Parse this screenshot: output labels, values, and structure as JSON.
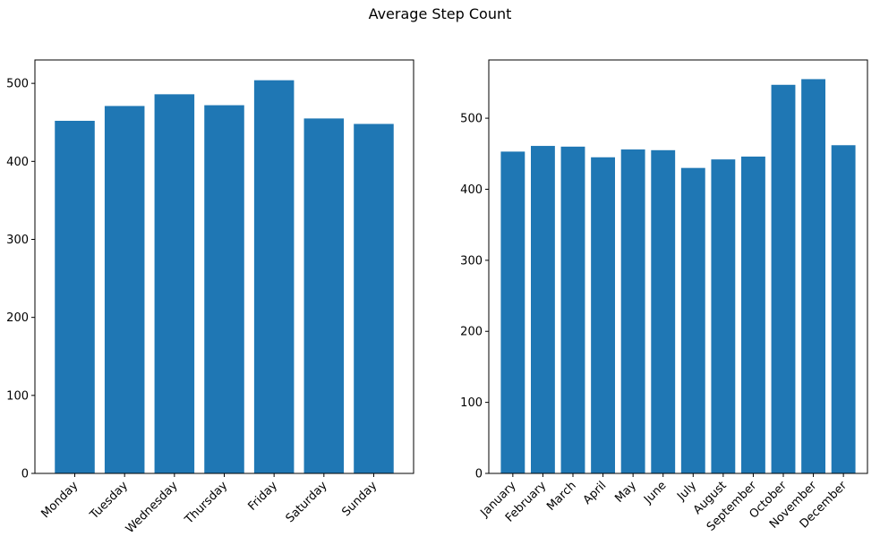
{
  "figure": {
    "title": "Average Step Count"
  },
  "chart_data": [
    {
      "type": "bar",
      "title": "",
      "xlabel": "",
      "ylabel": "",
      "categories": [
        "Monday",
        "Tuesday",
        "Wednesday",
        "Thursday",
        "Friday",
        "Saturday",
        "Sunday"
      ],
      "values": [
        452,
        471,
        486,
        472,
        504,
        455,
        448
      ],
      "ylim": [
        0,
        530
      ],
      "yticks": [
        0,
        100,
        200,
        300,
        400,
        500
      ],
      "bar_color": "#1f77b4",
      "grid": false
    },
    {
      "type": "bar",
      "title": "",
      "xlabel": "",
      "ylabel": "",
      "categories": [
        "January",
        "February",
        "March",
        "April",
        "May",
        "June",
        "July",
        "August",
        "September",
        "October",
        "November",
        "December"
      ],
      "values": [
        453,
        461,
        460,
        445,
        456,
        455,
        430,
        442,
        446,
        547,
        555,
        462
      ],
      "ylim": [
        0,
        582
      ],
      "yticks": [
        0,
        100,
        200,
        300,
        400,
        500
      ],
      "bar_color": "#1f77b4",
      "grid": false
    }
  ]
}
